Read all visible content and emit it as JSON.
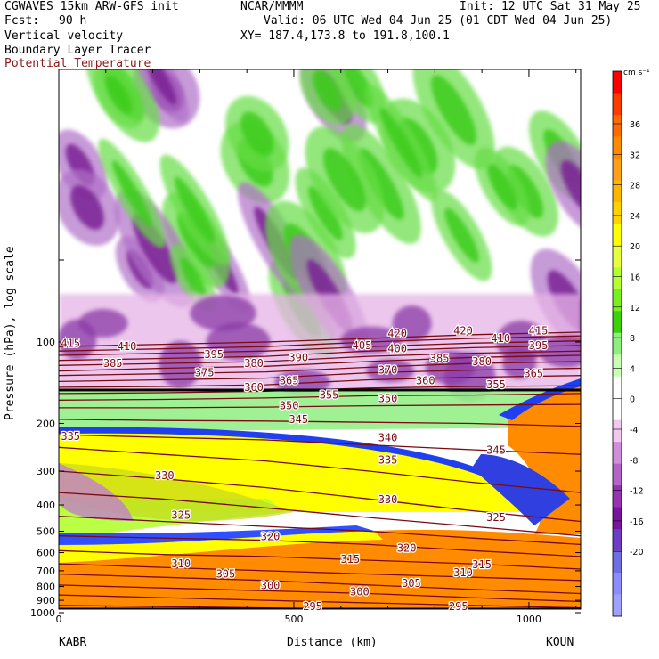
{
  "header": {
    "model": "CGWAVES 15km ARW-GFS init",
    "org": "NCAR/MMMM",
    "init": "Init: 12 UTC Sat 31 May 25",
    "fcst_label": "Fcst:",
    "fcst_value": "90 h",
    "valid": "Valid: 06 UTC Wed 04 Jun 25 (01 CDT Wed 04 Jun 25)",
    "fields": [
      "Vertical velocity",
      "Boundary Layer Tracer",
      "Potential Temperature"
    ],
    "xy": "XY= 187.4,173.8 to 191.8,100.1"
  },
  "colors": {
    "theta_contour": "#7a0a14",
    "theta_label": "#7a0a14"
  },
  "chart_data": {
    "type": "heatmap",
    "ylabel": "Pressure (hPa), log scale",
    "xlabel": "Distance (km)",
    "x_ticks": [
      0,
      500,
      1000
    ],
    "x_tick_labels": [
      "0",
      "500",
      "1000"
    ],
    "xlim": [
      0,
      1110
    ],
    "y_scale": "log",
    "y_ticks": [
      100,
      200,
      300,
      400,
      500,
      600,
      700,
      800,
      900,
      1000
    ],
    "y_tick_labels": [
      "100",
      "200",
      "300",
      "400",
      "500",
      "600",
      "700",
      "800",
      "900",
      "1000"
    ],
    "end_labels": [
      "KABR",
      "KOUN"
    ],
    "colorbar": {
      "unit": "cm s⁻¹",
      "ticks": [
        36,
        32,
        28,
        24,
        20,
        16,
        12,
        8,
        4,
        0,
        -4,
        -8,
        -12,
        -16,
        -20
      ],
      "colors": [
        "#ff0000",
        "#ff3b00",
        "#ff6a00",
        "#ff8a00",
        "#ff9f18",
        "#ffb400",
        "#ffd200",
        "#ffff00",
        "#e8ff40",
        "#b4ff30",
        "#78f020",
        "#3cd20a",
        "#8cf07c",
        "#c8ffb4",
        "#ffffff",
        "#ffffff",
        "#f0c8f0",
        "#d28cdc",
        "#b464c8",
        "#9632b4",
        "#7814a0",
        "#6e3cc8",
        "#6e6ee6",
        "#8c8cff",
        "#a0a0ff"
      ]
    },
    "theta_labels": [
      {
        "text": "415",
        "x": 25,
        "p": 101
      },
      {
        "text": "410",
        "x": 145,
        "p": 104
      },
      {
        "text": "395",
        "x": 330,
        "p": 111
      },
      {
        "text": "385",
        "x": 115,
        "p": 120
      },
      {
        "text": "380",
        "x": 415,
        "p": 120
      },
      {
        "text": "390",
        "x": 510,
        "p": 114
      },
      {
        "text": "375",
        "x": 310,
        "p": 130
      },
      {
        "text": "370",
        "x": 700,
        "p": 127
      },
      {
        "text": "365",
        "x": 490,
        "p": 139
      },
      {
        "text": "360",
        "x": 415,
        "p": 147
      },
      {
        "text": "355",
        "x": 575,
        "p": 157
      },
      {
        "text": "350",
        "x": 490,
        "p": 172
      },
      {
        "text": "345",
        "x": 510,
        "p": 193
      },
      {
        "text": "340",
        "x": 700,
        "p": 226
      },
      {
        "text": "335",
        "x": 25,
        "p": 223
      },
      {
        "text": "335",
        "x": 700,
        "p": 273
      },
      {
        "text": "330",
        "x": 225,
        "p": 312
      },
      {
        "text": "330",
        "x": 700,
        "p": 382
      },
      {
        "text": "325",
        "x": 260,
        "p": 437
      },
      {
        "text": "325",
        "x": 930,
        "p": 445
      },
      {
        "text": "320",
        "x": 450,
        "p": 523
      },
      {
        "text": "320",
        "x": 740,
        "p": 578
      },
      {
        "text": "315",
        "x": 620,
        "p": 635
      },
      {
        "text": "315",
        "x": 900,
        "p": 665
      },
      {
        "text": "310",
        "x": 260,
        "p": 660
      },
      {
        "text": "310",
        "x": 860,
        "p": 712
      },
      {
        "text": "305",
        "x": 355,
        "p": 719
      },
      {
        "text": "305",
        "x": 750,
        "p": 780
      },
      {
        "text": "300",
        "x": 450,
        "p": 795
      },
      {
        "text": "300",
        "x": 640,
        "p": 837
      },
      {
        "text": "295",
        "x": 540,
        "p": 950
      },
      {
        "text": "295",
        "x": 850,
        "p": 950
      },
      {
        "text": "420",
        "x": 720,
        "p": 93
      },
      {
        "text": "420",
        "x": 860,
        "p": 91
      },
      {
        "text": "415",
        "x": 1020,
        "p": 91
      },
      {
        "text": "410",
        "x": 940,
        "p": 97
      },
      {
        "text": "405",
        "x": 645,
        "p": 103
      },
      {
        "text": "400",
        "x": 720,
        "p": 106
      },
      {
        "text": "395",
        "x": 1020,
        "p": 103
      },
      {
        "text": "385",
        "x": 810,
        "p": 115
      },
      {
        "text": "380",
        "x": 900,
        "p": 118
      },
      {
        "text": "365",
        "x": 1010,
        "p": 131
      },
      {
        "text": "360",
        "x": 780,
        "p": 139
      },
      {
        "text": "355",
        "x": 930,
        "p": 144
      },
      {
        "text": "345",
        "x": 930,
        "p": 251
      },
      {
        "text": "350",
        "x": 700,
        "p": 162
      }
    ]
  }
}
